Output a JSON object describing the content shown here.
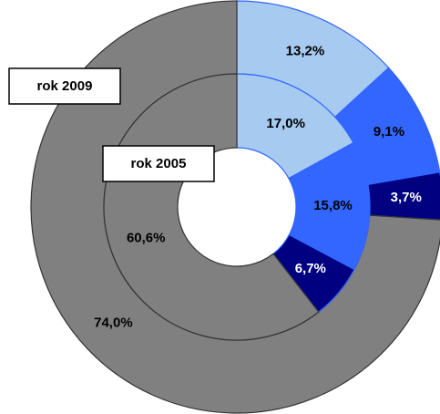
{
  "chart_data": {
    "type": "doughnut",
    "colors": [
      "#a6caf0",
      "#3366ff",
      "#000080",
      "#808080"
    ],
    "series": [
      {
        "name": "rok 2009",
        "values": [
          13.2,
          9.1,
          3.7,
          74.0
        ],
        "value_labels": [
          "13,2%",
          "9,1%",
          "3,7%",
          "74,0%"
        ]
      },
      {
        "name": "rok 2005",
        "values": [
          17.0,
          15.8,
          6.7,
          60.6
        ],
        "value_labels": [
          "17,0%",
          "15,8%",
          "6,7%",
          "60,6%"
        ]
      }
    ]
  }
}
